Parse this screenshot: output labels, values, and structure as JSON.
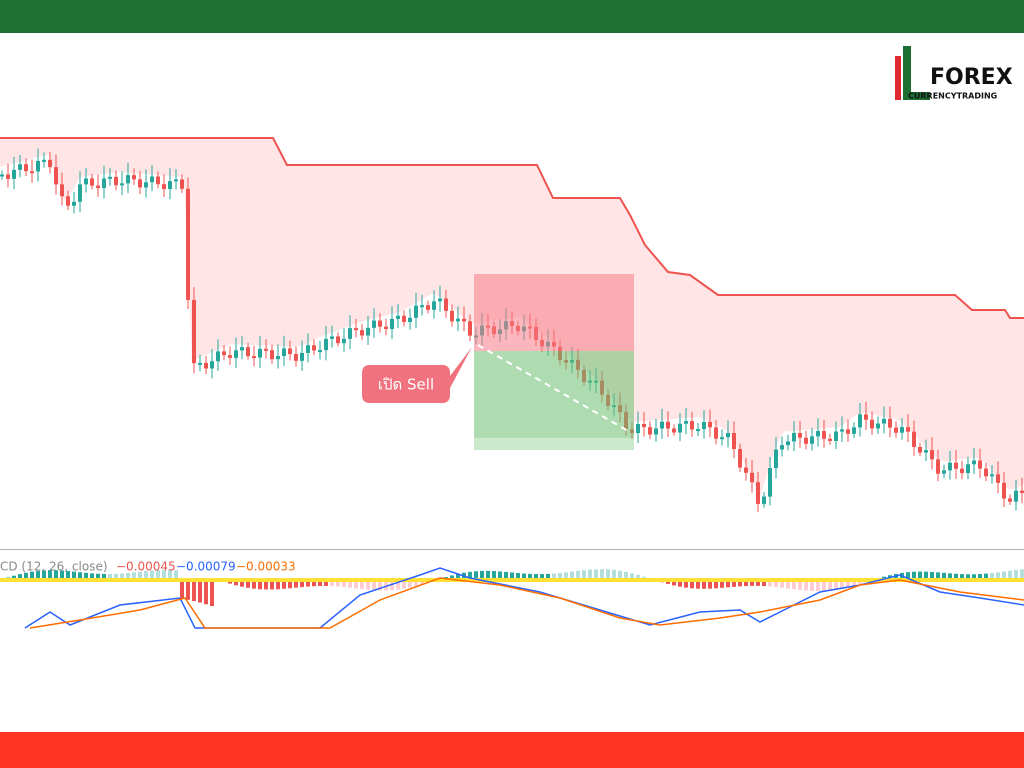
{
  "logo": {
    "brand": "FOREX",
    "tagline": "CURRENCYTRADING"
  },
  "annotation": "เปิด Sell",
  "indicator": {
    "label": "CD (12, 26, close)",
    "values": [
      "−0.00045",
      "−0.00079",
      "−0.00033"
    ]
  }
}
